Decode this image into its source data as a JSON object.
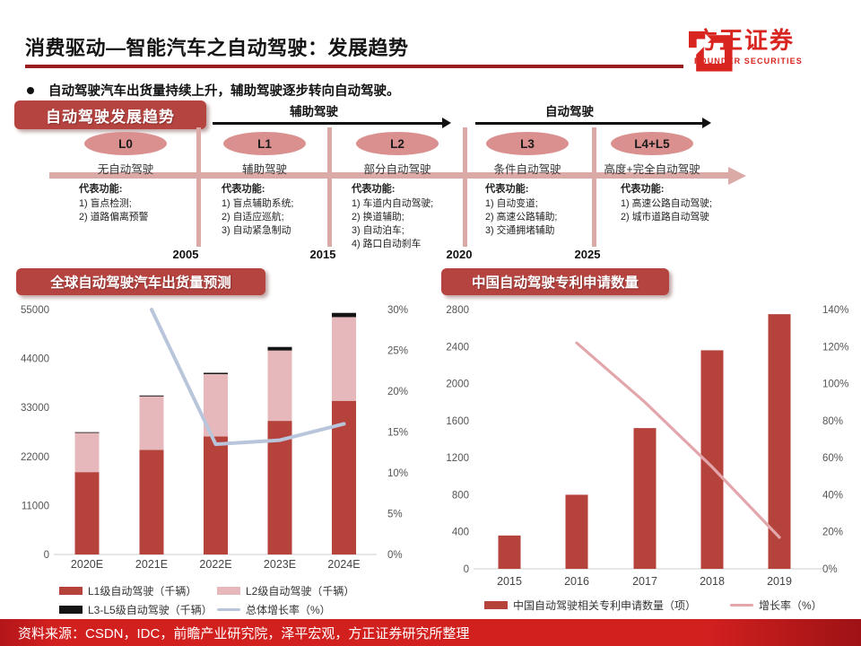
{
  "colors": {
    "accent_red": "#9a1c1e",
    "brand_red": "#d8251f",
    "badge_red": "#b5433f",
    "timeline_salmon": "#dba9a6",
    "ellipse_pink": "#d9908e",
    "bar_dark_red": "#b5433c",
    "bar_light_pink": "#e6b8bb",
    "bar_black": "#141414",
    "line_blue": "#b9c5da",
    "line_pink": "#e2a6ab",
    "footer_red": "#d2201f"
  },
  "header": {
    "title": "消费驱动—智能汽车之自动驾驶：发展趋势",
    "logo_cn": "方正证券",
    "logo_en": "FOUNDER SECURITIES"
  },
  "bullet": "自动驾驶汽车出货量持续上升，辅助驾驶逐步转向自动驾驶。",
  "timeline": {
    "badge": "自动驾驶发展趋势",
    "feature_header": "代表功能:",
    "phases": [
      {
        "label": "辅助驾驶"
      },
      {
        "label": "自动驾驶"
      }
    ],
    "levels": [
      {
        "code": "L0",
        "name": "无自动驾驶",
        "features": [
          "1) 盲点检测;",
          "2) 道路偏离预警"
        ]
      },
      {
        "code": "L1",
        "name": "辅助驾驶",
        "features": [
          "1) 盲点辅助系统;",
          "2) 自适应巡航;",
          "3) 自动紧急制动"
        ]
      },
      {
        "code": "L2",
        "name": "部分自动驾驶",
        "features": [
          "1) 车道内自动驾驶;",
          "2) 换道辅助;",
          "3) 自动泊车;",
          "4) 路口自动刹车"
        ]
      },
      {
        "code": "L3",
        "name": "条件自动驾驶",
        "features": [
          "1) 自动变道;",
          "2) 高速公路辅助;",
          "3) 交通拥堵辅助"
        ]
      },
      {
        "code": "L4+L5",
        "name": "高度+完全自动驾驶",
        "features": [
          "1) 高速公路自动驾驶;",
          "2) 城市道路自动驾驶"
        ]
      }
    ],
    "years": [
      "2005",
      "2015",
      "2020",
      "2025"
    ]
  },
  "chart_data": [
    {
      "type": "bar",
      "subtype": "stacked-bar-with-line",
      "title": "全球自动驾驶汽车出货量预测",
      "categories": [
        "2020E",
        "2021E",
        "2022E",
        "2023E",
        "2024E"
      ],
      "series": [
        {
          "name": "L1级自动驾驶（千辆）",
          "type": "bar",
          "color": "#b5433c",
          "values": [
            18500,
            23500,
            26500,
            30000,
            34500
          ]
        },
        {
          "name": "L2级自动驾驶（千辆）",
          "type": "bar",
          "color": "#e6b8bb",
          "values": [
            8800,
            12000,
            14000,
            15800,
            18800
          ]
        },
        {
          "name": "L3-L5级自动驾驶（千辆）",
          "type": "bar",
          "color": "#141414",
          "values": [
            100,
            200,
            300,
            800,
            950
          ]
        },
        {
          "name": "总体增长率（%）",
          "type": "line",
          "axis": "right",
          "color": "#b9c5da",
          "values": [
            null,
            30,
            13.5,
            14,
            16
          ]
        }
      ],
      "left_axis": {
        "min": 0,
        "max": 55000,
        "step": 11000
      },
      "right_axis": {
        "min": 0,
        "max": 30,
        "step": 5,
        "suffix": "%"
      },
      "grid": false,
      "legend_position": "bottom"
    },
    {
      "type": "bar",
      "subtype": "bar-with-line",
      "title": "中国自动驾驶专利申请数量",
      "categories": [
        "2015",
        "2016",
        "2017",
        "2018",
        "2019"
      ],
      "series": [
        {
          "name": "中国自动驾驶相关专利申请数量（项）",
          "type": "bar",
          "color": "#b5433c",
          "values": [
            360,
            800,
            1520,
            2360,
            2750
          ]
        },
        {
          "name": "增长率（%）",
          "type": "line",
          "axis": "right",
          "color": "#e2a6ab",
          "values": [
            null,
            122,
            90,
            55,
            17
          ]
        }
      ],
      "left_axis": {
        "min": 0,
        "max": 2800,
        "step": 400
      },
      "right_axis": {
        "min": 0,
        "max": 140,
        "step": 20,
        "suffix": "%"
      },
      "grid": false,
      "legend_position": "bottom"
    }
  ],
  "footer": {
    "source": "资料来源：CSDN，IDC，前瞻产业研究院，泽平宏观，方正证券研究所整理"
  }
}
